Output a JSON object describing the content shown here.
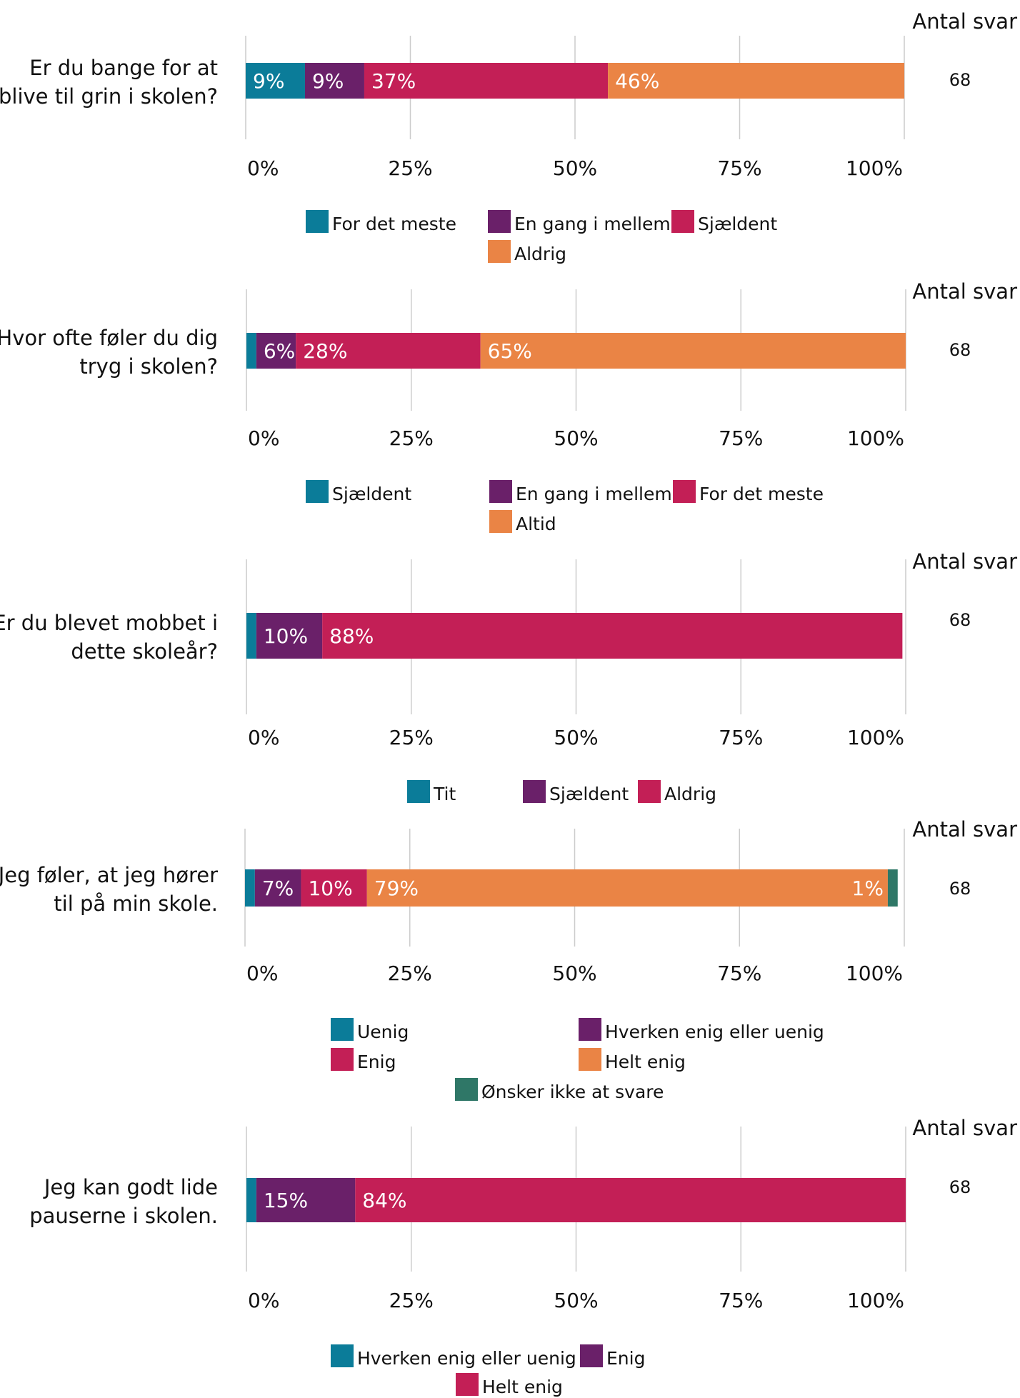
{
  "colors": {
    "teal": "#0b7c99",
    "purple": "#6a2069",
    "crimson": "#c31f56",
    "orange": "#ea8445",
    "green": "#2f7767",
    "grid": "#cccccc",
    "label_on_bar": "#ffffff"
  },
  "chart_data": [
    {
      "type": "bar",
      "orientation": "horizontal",
      "stacked": true,
      "question": "Er du bange for at blive til grin i skolen?",
      "question_lines": [
        "Er du bange for at",
        "blive til grin i skolen?"
      ],
      "count_header": "Antal svar",
      "count": "68",
      "xlim": [
        0,
        100
      ],
      "xticks": [
        "0%",
        "25%",
        "50%",
        "75%",
        "100%"
      ],
      "grid": true,
      "legend_position": "bottom",
      "series": [
        {
          "name": "For det meste",
          "value": 9,
          "label": "9%",
          "color": "#0b7c99"
        },
        {
          "name": "En gang i mellem",
          "value": 9,
          "label": "9%",
          "color": "#6a2069"
        },
        {
          "name": "Sjældent",
          "value": 37,
          "label": "37%",
          "color": "#c31f56"
        },
        {
          "name": "Aldrig",
          "value": 46,
          "label": "46%",
          "color": "#ea8445"
        }
      ]
    },
    {
      "type": "bar",
      "orientation": "horizontal",
      "stacked": true,
      "question": "Hvor ofte føler du dig tryg i skolen?",
      "question_lines": [
        "Hvor ofte føler du dig",
        "tryg i skolen?"
      ],
      "count_header": "Antal svar",
      "count": "68",
      "xlim": [
        0,
        100
      ],
      "xticks": [
        "0%",
        "25%",
        "50%",
        "75%",
        "100%"
      ],
      "grid": true,
      "legend_position": "bottom",
      "series": [
        {
          "name": "Sjældent",
          "value": 1.5,
          "label": "",
          "color": "#0b7c99"
        },
        {
          "name": "En gang i mellem",
          "value": 6,
          "label": "6%",
          "color": "#6a2069"
        },
        {
          "name": "For det meste",
          "value": 28,
          "label": "28%",
          "color": "#c31f56"
        },
        {
          "name": "Altid",
          "value": 65,
          "label": "65%",
          "color": "#ea8445"
        }
      ]
    },
    {
      "type": "bar",
      "orientation": "horizontal",
      "stacked": true,
      "question": "Er du blevet mobbet i dette skoleår?",
      "question_lines": [
        "Er du blevet mobbet i",
        "dette skoleår?"
      ],
      "count_header": "Antal svar",
      "count": "68",
      "xlim": [
        0,
        100
      ],
      "xticks": [
        "0%",
        "25%",
        "50%",
        "75%",
        "100%"
      ],
      "grid": true,
      "legend_position": "bottom",
      "series": [
        {
          "name": "Tit",
          "value": 1.5,
          "label": "",
          "color": "#0b7c99"
        },
        {
          "name": "Sjældent",
          "value": 10,
          "label": "10%",
          "color": "#6a2069"
        },
        {
          "name": "Aldrig",
          "value": 88,
          "label": "88%",
          "color": "#c31f56"
        }
      ]
    },
    {
      "type": "bar",
      "orientation": "horizontal",
      "stacked": true,
      "question": "Jeg føler, at jeg hører til på min skole.",
      "question_lines": [
        "Jeg føler, at jeg hører",
        "til på min skole."
      ],
      "count_header": "Antal svar",
      "count": "68",
      "xlim": [
        0,
        100
      ],
      "xticks": [
        "0%",
        "25%",
        "50%",
        "75%",
        "100%"
      ],
      "grid": true,
      "legend_position": "bottom",
      "series": [
        {
          "name": "Uenig",
          "value": 1.5,
          "label": "",
          "color": "#0b7c99"
        },
        {
          "name": "Hverken enig eller uenig",
          "value": 7,
          "label": "7%",
          "color": "#6a2069"
        },
        {
          "name": "Enig",
          "value": 10,
          "label": "10%",
          "color": "#c31f56"
        },
        {
          "name": "Helt enig",
          "value": 79,
          "label": "79%",
          "color": "#ea8445"
        },
        {
          "name": "Ønsker ikke at svare",
          "value": 1.5,
          "label": "1%",
          "label_outside_left": true,
          "color": "#2f7767"
        }
      ]
    },
    {
      "type": "bar",
      "orientation": "horizontal",
      "stacked": true,
      "question": "Jeg kan godt lide pauserne i skolen.",
      "question_lines": [
        "Jeg kan godt lide",
        "pauserne i skolen."
      ],
      "count_header": "Antal svar",
      "count": "68",
      "xlim": [
        0,
        100
      ],
      "xticks": [
        "0%",
        "25%",
        "50%",
        "75%",
        "100%"
      ],
      "grid": true,
      "legend_position": "bottom",
      "series": [
        {
          "name": "Hverken enig eller uenig",
          "value": 1.5,
          "label": "",
          "color": "#0b7c99"
        },
        {
          "name": "Enig",
          "value": 15,
          "label": "15%",
          "color": "#6a2069"
        },
        {
          "name": "Helt enig",
          "value": 84,
          "label": "84%",
          "color": "#c31f56"
        }
      ]
    }
  ]
}
